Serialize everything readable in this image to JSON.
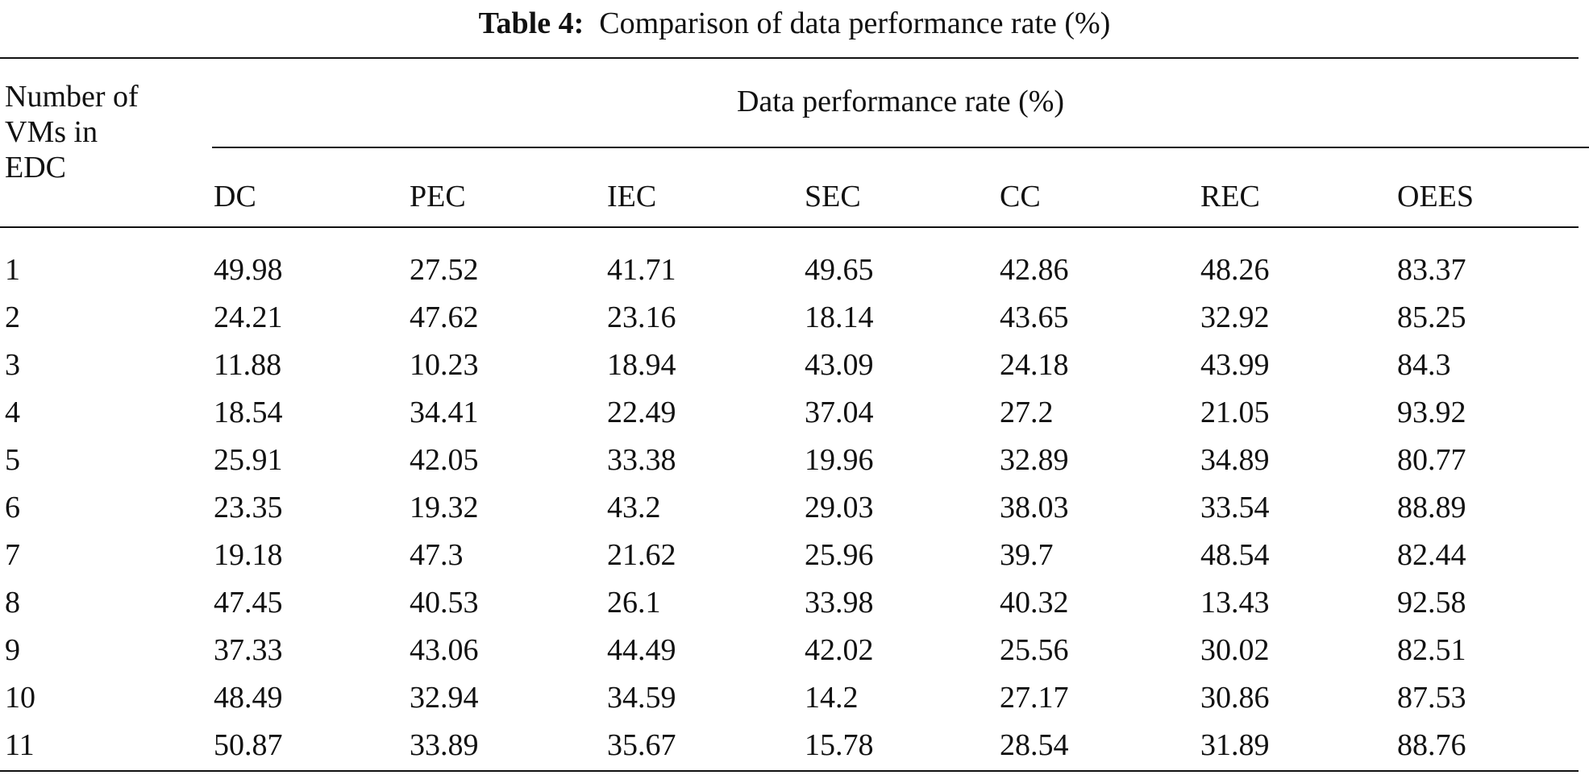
{
  "caption": {
    "label": "Table 4:",
    "text": "Comparison of data performance rate (%)"
  },
  "table": {
    "stub_header_lines": [
      "Number of",
      "VMs in",
      "EDC"
    ],
    "group_header": "Data performance rate (%)",
    "columns": [
      "DC",
      "PEC",
      "IEC",
      "SEC",
      "CC",
      "REC",
      "OEES"
    ],
    "rows": [
      {
        "vms": "1",
        "values": [
          "49.98",
          "27.52",
          "41.71",
          "49.65",
          "42.86",
          "48.26",
          "83.37"
        ]
      },
      {
        "vms": "2",
        "values": [
          "24.21",
          "47.62",
          "23.16",
          "18.14",
          "43.65",
          "32.92",
          "85.25"
        ]
      },
      {
        "vms": "3",
        "values": [
          "11.88",
          "10.23",
          "18.94",
          "43.09",
          "24.18",
          "43.99",
          "84.3"
        ]
      },
      {
        "vms": "4",
        "values": [
          "18.54",
          "34.41",
          "22.49",
          "37.04",
          "27.2",
          "21.05",
          "93.92"
        ]
      },
      {
        "vms": "5",
        "values": [
          "25.91",
          "42.05",
          "33.38",
          "19.96",
          "32.89",
          "34.89",
          "80.77"
        ]
      },
      {
        "vms": "6",
        "values": [
          "23.35",
          "19.32",
          "43.2",
          "29.03",
          "38.03",
          "33.54",
          "88.89"
        ]
      },
      {
        "vms": "7",
        "values": [
          "19.18",
          "47.3",
          "21.62",
          "25.96",
          "39.7",
          "48.54",
          "82.44"
        ]
      },
      {
        "vms": "8",
        "values": [
          "47.45",
          "40.53",
          "26.1",
          "33.98",
          "40.32",
          "13.43",
          "92.58"
        ]
      },
      {
        "vms": "9",
        "values": [
          "37.33",
          "43.06",
          "44.49",
          "42.02",
          "25.56",
          "30.02",
          "82.51"
        ]
      },
      {
        "vms": "10",
        "values": [
          "48.49",
          "32.94",
          "34.59",
          "14.2",
          "27.17",
          "30.86",
          "87.53"
        ]
      },
      {
        "vms": "11",
        "values": [
          "50.87",
          "33.89",
          "35.67",
          "15.78",
          "28.54",
          "31.89",
          "88.76"
        ]
      }
    ]
  }
}
